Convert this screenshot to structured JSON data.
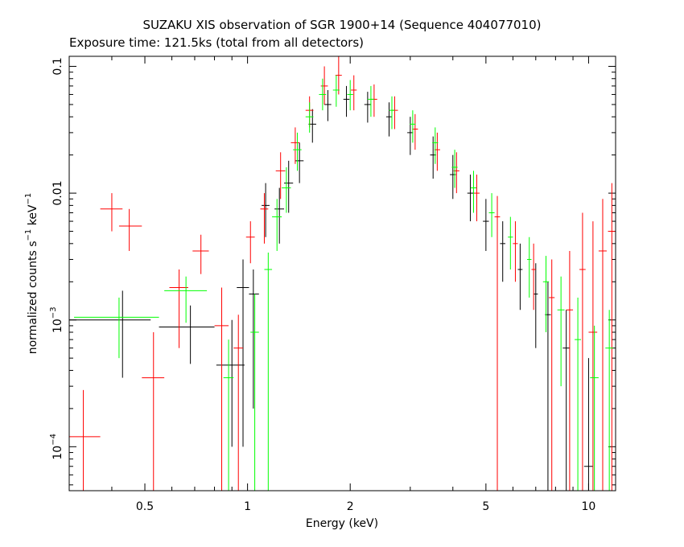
{
  "chart_data": {
    "type": "scatter",
    "title": "SUZAKU XIS observation of SGR 1900+14 (Sequence 404077010)",
    "subtitle": "Exposure time: 121.5ks (total from all detectors)",
    "xlabel": "Energy (keV)",
    "ylabel_main": "normalized counts s",
    "ylabel_exp1": "−1",
    "ylabel_mid": " keV",
    "ylabel_exp2": "−1",
    "x_scale": "log",
    "y_scale": "log",
    "xlim": [
      0.3,
      12
    ],
    "ylim": [
      4.5e-05,
      0.12
    ],
    "x_ticks": [
      {
        "value": 0.5,
        "label": "0.5"
      },
      {
        "value": 1,
        "label": "1"
      },
      {
        "value": 2,
        "label": "2"
      },
      {
        "value": 5,
        "label": "5"
      },
      {
        "value": 10,
        "label": "10"
      }
    ],
    "y_ticks": [
      {
        "value": 0.1,
        "label": "0.1",
        "exp": ""
      },
      {
        "value": 0.01,
        "label": "0.01",
        "exp": ""
      },
      {
        "value": 0.001,
        "label": "10",
        "exp": "−3"
      },
      {
        "value": 0.0001,
        "label": "10",
        "exp": "−4"
      }
    ],
    "grid": false,
    "legend": "none",
    "series": [
      {
        "color": "#000000",
        "points": [
          {
            "x": 0.43,
            "xlo": 0.3,
            "xhi": 0.52,
            "y": 0.001,
            "ylo": 0.00035,
            "yhi": 0.0017
          },
          {
            "x": 0.68,
            "xlo": 0.55,
            "xhi": 0.8,
            "y": 0.00088,
            "ylo": 0.00045,
            "yhi": 0.0013
          },
          {
            "x": 0.9,
            "xlo": 0.81,
            "xhi": 0.98,
            "y": 0.00044,
            "ylo": 0.0001,
            "yhi": 0.001
          },
          {
            "x": 0.97,
            "xlo": 0.93,
            "xhi": 1.01,
            "y": 0.0018,
            "ylo": 0.0001,
            "yhi": 0.003
          },
          {
            "x": 1.04,
            "xlo": 1.01,
            "xhi": 1.08,
            "y": 0.0016,
            "ylo": 0.0002,
            "yhi": 0.0025
          },
          {
            "x": 1.13,
            "xlo": 1.1,
            "xhi": 1.16,
            "y": 0.008,
            "ylo": 0.0045,
            "yhi": 0.012
          },
          {
            "x": 1.24,
            "xlo": 1.2,
            "xhi": 1.28,
            "y": 0.0075,
            "ylo": 0.004,
            "yhi": 0.011
          },
          {
            "x": 1.32,
            "xlo": 1.28,
            "xhi": 1.36,
            "y": 0.012,
            "ylo": 0.007,
            "yhi": 0.018
          },
          {
            "x": 1.42,
            "xlo": 1.38,
            "xhi": 1.46,
            "y": 0.018,
            "ylo": 0.012,
            "yhi": 0.025
          },
          {
            "x": 1.55,
            "xlo": 1.51,
            "xhi": 1.59,
            "y": 0.035,
            "ylo": 0.025,
            "yhi": 0.046
          },
          {
            "x": 1.72,
            "xlo": 1.68,
            "xhi": 1.76,
            "y": 0.05,
            "ylo": 0.037,
            "yhi": 0.065
          },
          {
            "x": 1.95,
            "xlo": 1.91,
            "xhi": 1.99,
            "y": 0.055,
            "ylo": 0.04,
            "yhi": 0.07
          },
          {
            "x": 2.25,
            "xlo": 2.2,
            "xhi": 2.3,
            "y": 0.05,
            "ylo": 0.036,
            "yhi": 0.063
          },
          {
            "x": 2.6,
            "xlo": 2.55,
            "xhi": 2.65,
            "y": 0.04,
            "ylo": 0.028,
            "yhi": 0.052
          },
          {
            "x": 3.0,
            "xlo": 2.94,
            "xhi": 3.06,
            "y": 0.03,
            "ylo": 0.02,
            "yhi": 0.04
          },
          {
            "x": 3.5,
            "xlo": 3.43,
            "xhi": 3.57,
            "y": 0.02,
            "ylo": 0.013,
            "yhi": 0.028
          },
          {
            "x": 4.0,
            "xlo": 3.92,
            "xhi": 4.08,
            "y": 0.014,
            "ylo": 0.009,
            "yhi": 0.02
          },
          {
            "x": 4.5,
            "xlo": 4.41,
            "xhi": 4.59,
            "y": 0.01,
            "ylo": 0.006,
            "yhi": 0.014
          },
          {
            "x": 5.0,
            "xlo": 4.9,
            "xhi": 5.1,
            "y": 0.006,
            "ylo": 0.0035,
            "yhi": 0.009
          },
          {
            "x": 5.6,
            "xlo": 5.5,
            "xhi": 5.7,
            "y": 0.004,
            "ylo": 0.002,
            "yhi": 0.006
          },
          {
            "x": 6.3,
            "xlo": 6.2,
            "xhi": 6.4,
            "y": 0.0025,
            "ylo": 0.0012,
            "yhi": 0.004
          },
          {
            "x": 7.0,
            "xlo": 6.9,
            "xhi": 7.1,
            "y": 0.0016,
            "ylo": 0.0006,
            "yhi": 0.0028
          },
          {
            "x": 7.6,
            "xlo": 7.45,
            "xhi": 7.75,
            "y": 0.0011,
            "ylo": 4e-05,
            "yhi": 0.002
          },
          {
            "x": 8.6,
            "xlo": 8.4,
            "xhi": 8.8,
            "y": 0.0006,
            "ylo": 4e-05,
            "yhi": 0.0012
          },
          {
            "x": 10.0,
            "xlo": 9.7,
            "xhi": 10.3,
            "y": 7e-05,
            "ylo": 4e-05,
            "yhi": 0.0005
          }
        ]
      },
      {
        "color": "#ff0000",
        "points": [
          {
            "x": 0.33,
            "xlo": 0.3,
            "xhi": 0.37,
            "y": 0.00012,
            "ylo": 4e-05,
            "yhi": 0.00028
          },
          {
            "x": 0.4,
            "xlo": 0.37,
            "xhi": 0.43,
            "y": 0.0075,
            "ylo": 0.005,
            "yhi": 0.01
          },
          {
            "x": 0.45,
            "xlo": 0.42,
            "xhi": 0.49,
            "y": 0.0055,
            "ylo": 0.0035,
            "yhi": 0.0075
          },
          {
            "x": 0.53,
            "xlo": 0.49,
            "xhi": 0.57,
            "y": 0.00035,
            "ylo": 4e-05,
            "yhi": 0.0008
          },
          {
            "x": 0.63,
            "xlo": 0.59,
            "xhi": 0.67,
            "y": 0.0018,
            "ylo": 0.0006,
            "yhi": 0.0025
          },
          {
            "x": 0.73,
            "xlo": 0.69,
            "xhi": 0.77,
            "y": 0.0035,
            "ylo": 0.0023,
            "yhi": 0.0047
          },
          {
            "x": 0.84,
            "xlo": 0.8,
            "xhi": 0.88,
            "y": 0.0009,
            "ylo": 4e-05,
            "yhi": 0.0018
          },
          {
            "x": 0.94,
            "xlo": 0.91,
            "xhi": 0.97,
            "y": 0.0006,
            "ylo": 4e-05,
            "yhi": 0.0011
          },
          {
            "x": 1.02,
            "xlo": 0.99,
            "xhi": 1.05,
            "y": 0.0045,
            "ylo": 0.0028,
            "yhi": 0.006
          },
          {
            "x": 1.12,
            "xlo": 1.09,
            "xhi": 1.15,
            "y": 0.0075,
            "ylo": 0.004,
            "yhi": 0.01
          },
          {
            "x": 1.25,
            "xlo": 1.21,
            "xhi": 1.29,
            "y": 0.015,
            "ylo": 0.009,
            "yhi": 0.021
          },
          {
            "x": 1.38,
            "xlo": 1.34,
            "xhi": 1.42,
            "y": 0.025,
            "ylo": 0.017,
            "yhi": 0.033
          },
          {
            "x": 1.52,
            "xlo": 1.48,
            "xhi": 1.56,
            "y": 0.045,
            "ylo": 0.033,
            "yhi": 0.058
          },
          {
            "x": 1.68,
            "xlo": 1.64,
            "xhi": 1.72,
            "y": 0.07,
            "ylo": 0.05,
            "yhi": 0.1
          },
          {
            "x": 1.85,
            "xlo": 1.81,
            "xhi": 1.89,
            "y": 0.085,
            "ylo": 0.06,
            "yhi": 0.12
          },
          {
            "x": 2.05,
            "xlo": 2.01,
            "xhi": 2.09,
            "y": 0.065,
            "ylo": 0.045,
            "yhi": 0.085
          },
          {
            "x": 2.35,
            "xlo": 2.3,
            "xhi": 2.4,
            "y": 0.055,
            "ylo": 0.04,
            "yhi": 0.072
          },
          {
            "x": 2.7,
            "xlo": 2.64,
            "xhi": 2.76,
            "y": 0.045,
            "ylo": 0.032,
            "yhi": 0.058
          },
          {
            "x": 3.1,
            "xlo": 3.04,
            "xhi": 3.16,
            "y": 0.032,
            "ylo": 0.022,
            "yhi": 0.042
          },
          {
            "x": 3.6,
            "xlo": 3.53,
            "xhi": 3.67,
            "y": 0.022,
            "ylo": 0.015,
            "yhi": 0.03
          },
          {
            "x": 4.1,
            "xlo": 4.02,
            "xhi": 4.18,
            "y": 0.015,
            "ylo": 0.01,
            "yhi": 0.021
          },
          {
            "x": 4.7,
            "xlo": 4.61,
            "xhi": 4.79,
            "y": 0.01,
            "ylo": 0.006,
            "yhi": 0.014
          },
          {
            "x": 5.4,
            "xlo": 5.3,
            "xhi": 5.5,
            "y": 0.0065,
            "ylo": 4e-05,
            "yhi": 0.0095
          },
          {
            "x": 6.1,
            "xlo": 6.0,
            "xhi": 6.2,
            "y": 0.004,
            "ylo": 0.002,
            "yhi": 0.006
          },
          {
            "x": 6.9,
            "xlo": 6.8,
            "xhi": 7.0,
            "y": 0.0025,
            "ylo": 0.0012,
            "yhi": 0.004
          },
          {
            "x": 7.8,
            "xlo": 7.65,
            "xhi": 7.95,
            "y": 0.0015,
            "ylo": 4e-05,
            "yhi": 0.003
          },
          {
            "x": 8.8,
            "xlo": 8.6,
            "xhi": 9.0,
            "y": 0.0012,
            "ylo": 4e-05,
            "yhi": 0.0035
          },
          {
            "x": 9.6,
            "xlo": 9.4,
            "xhi": 9.8,
            "y": 0.0025,
            "ylo": 4e-05,
            "yhi": 0.007
          },
          {
            "x": 10.3,
            "xlo": 10.0,
            "xhi": 10.6,
            "y": 0.0008,
            "ylo": 4e-05,
            "yhi": 0.006
          },
          {
            "x": 11.0,
            "xlo": 10.7,
            "xhi": 11.3,
            "y": 0.0035,
            "ylo": 4e-05,
            "yhi": 0.009
          },
          {
            "x": 11.7,
            "xlo": 11.4,
            "xhi": 11.95,
            "y": 0.005,
            "ylo": 4e-05,
            "yhi": 0.012
          }
        ]
      },
      {
        "color": "#00ff00",
        "points": [
          {
            "x": 0.42,
            "xlo": 0.31,
            "xhi": 0.55,
            "y": 0.00105,
            "ylo": 0.0005,
            "yhi": 0.0015
          },
          {
            "x": 0.66,
            "xlo": 0.57,
            "xhi": 0.76,
            "y": 0.0017,
            "ylo": 0.00095,
            "yhi": 0.0022
          },
          {
            "x": 0.88,
            "xlo": 0.85,
            "xhi": 0.91,
            "y": 0.00035,
            "ylo": 4e-05,
            "yhi": 0.0007
          },
          {
            "x": 1.05,
            "xlo": 1.02,
            "xhi": 1.08,
            "y": 0.0008,
            "ylo": 4e-05,
            "yhi": 0.0016
          },
          {
            "x": 1.15,
            "xlo": 1.12,
            "xhi": 1.18,
            "y": 0.0025,
            "ylo": 4e-05,
            "yhi": 0.0034
          },
          {
            "x": 1.22,
            "xlo": 1.18,
            "xhi": 1.26,
            "y": 0.0065,
            "ylo": 0.0035,
            "yhi": 0.009
          },
          {
            "x": 1.3,
            "xlo": 1.26,
            "xhi": 1.34,
            "y": 0.011,
            "ylo": 0.007,
            "yhi": 0.016
          },
          {
            "x": 1.4,
            "xlo": 1.36,
            "xhi": 1.44,
            "y": 0.022,
            "ylo": 0.015,
            "yhi": 0.03
          },
          {
            "x": 1.52,
            "xlo": 1.48,
            "xhi": 1.56,
            "y": 0.04,
            "ylo": 0.03,
            "yhi": 0.052
          },
          {
            "x": 1.66,
            "xlo": 1.62,
            "xhi": 1.7,
            "y": 0.06,
            "ylo": 0.045,
            "yhi": 0.08
          },
          {
            "x": 1.82,
            "xlo": 1.78,
            "xhi": 1.86,
            "y": 0.065,
            "ylo": 0.048,
            "yhi": 0.085
          },
          {
            "x": 2.0,
            "xlo": 1.96,
            "xhi": 2.04,
            "y": 0.06,
            "ylo": 0.045,
            "yhi": 0.078
          },
          {
            "x": 2.3,
            "xlo": 2.25,
            "xhi": 2.35,
            "y": 0.055,
            "ylo": 0.04,
            "yhi": 0.07
          },
          {
            "x": 2.65,
            "xlo": 2.6,
            "xhi": 2.7,
            "y": 0.045,
            "ylo": 0.032,
            "yhi": 0.058
          },
          {
            "x": 3.05,
            "xlo": 2.99,
            "xhi": 3.11,
            "y": 0.035,
            "ylo": 0.025,
            "yhi": 0.045
          },
          {
            "x": 3.55,
            "xlo": 3.48,
            "xhi": 3.62,
            "y": 0.025,
            "ylo": 0.017,
            "yhi": 0.033
          },
          {
            "x": 4.05,
            "xlo": 3.97,
            "xhi": 4.13,
            "y": 0.016,
            "ylo": 0.011,
            "yhi": 0.022
          },
          {
            "x": 4.6,
            "xlo": 4.51,
            "xhi": 4.69,
            "y": 0.011,
            "ylo": 0.007,
            "yhi": 0.015
          },
          {
            "x": 5.2,
            "xlo": 5.1,
            "xhi": 5.3,
            "y": 0.007,
            "ylo": 0.0045,
            "yhi": 0.01
          },
          {
            "x": 5.9,
            "xlo": 5.8,
            "xhi": 6.0,
            "y": 0.0045,
            "ylo": 0.0025,
            "yhi": 0.0065
          },
          {
            "x": 6.7,
            "xlo": 6.6,
            "xhi": 6.8,
            "y": 0.003,
            "ylo": 0.0015,
            "yhi": 0.0045
          },
          {
            "x": 7.5,
            "xlo": 7.35,
            "xhi": 7.65,
            "y": 0.002,
            "ylo": 0.0008,
            "yhi": 0.0032
          },
          {
            "x": 8.3,
            "xlo": 8.1,
            "xhi": 8.5,
            "y": 0.0012,
            "ylo": 0.0003,
            "yhi": 0.0022
          },
          {
            "x": 9.3,
            "xlo": 9.1,
            "xhi": 9.5,
            "y": 0.0007,
            "ylo": 4e-05,
            "yhi": 0.0015
          },
          {
            "x": 10.4,
            "xlo": 10.1,
            "xhi": 10.7,
            "y": 0.00035,
            "ylo": 4e-05,
            "yhi": 0.0009
          },
          {
            "x": 11.5,
            "xlo": 11.2,
            "xhi": 11.8,
            "y": 0.0006,
            "ylo": 4e-05,
            "yhi": 0.0012
          }
        ]
      }
    ]
  }
}
